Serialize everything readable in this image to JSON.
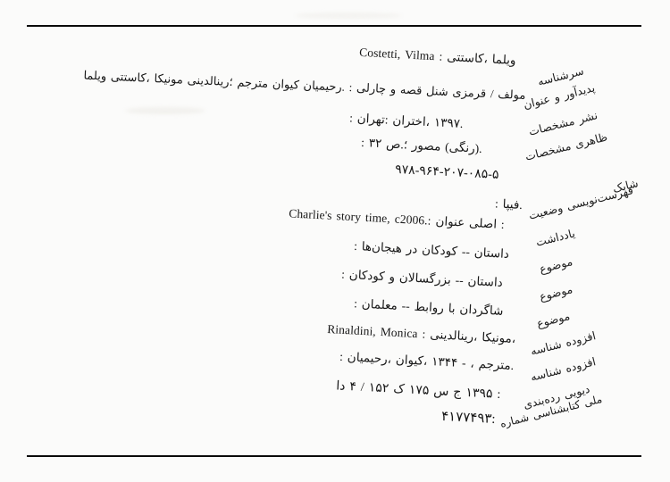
{
  "document": {
    "kind": "library-catalog-card",
    "language": "Persian (Farsi) with Latin runs",
    "ink_color": "#141414",
    "paper_color": "#fbfbfa",
    "rows": [
      {
        "field": "main-entry",
        "label": "سرشناسه",
        "value": "Costetti, Vilma : کاستتی، ویلما"
      },
      {
        "field": "title-statement",
        "label": "عنوان و پدیدآور",
        "value": "ویلما کاستتی، مونیکا رینالدینی؛ مترجم کیوان رحیمیان. : چارلی و قصه شنل قرمزی / مولف"
      },
      {
        "field": "publication",
        "label": "مشخصات نشر",
        "value": ": تهران: اختران، ۱۳۹۷."
      },
      {
        "field": "physical-description",
        "label": "مشخصات ظاهری",
        "value": ": ۳۲ ص.؛ مصور (رنگی)."
      },
      {
        "field": "isbn",
        "label": "شابک",
        "value": "۹۷۸-۹۶۴-۲۰۷-۰۸۵-۵"
      },
      {
        "field": "cataloging-status",
        "label": "وضعیت فهرست‌نویسی",
        "value": ": فیپا."
      },
      {
        "field": "note",
        "label": "یادداشت",
        "value": "Charlie's story time, c2006.: عنوان اصلی :"
      },
      {
        "field": "subject-1",
        "label": "موضوع",
        "value": ": هیجان‌ها در کودکان -- داستان"
      },
      {
        "field": "subject-2",
        "label": "موضوع",
        "value": ": کودکان و بزرگسالان -- داستان"
      },
      {
        "field": "subject-3",
        "label": "موضوع",
        "value": ": معلمان -- روابط با شاگردان"
      },
      {
        "field": "added-entry-1",
        "label": "شناسه افزوده",
        "value": "Rinaldini, Monica : رینالدینی، مونیکا،"
      },
      {
        "field": "added-entry-2",
        "label": "شناسه افزوده",
        "value": ": رحیمیان، کیوان، ۱۳۴۴ - ، مترجم."
      },
      {
        "field": "dewey-classification",
        "label": "رده‌بندی دیویی",
        "value": "دا ۴ / ۱۵۲ ک ۱۷۵ س ج ۱۳۹۵ :"
      },
      {
        "field": "national-bib-number",
        "label": "شماره کتابشناسی ملی",
        "value": "۴۱۷۷۴۹۳:"
      }
    ]
  }
}
